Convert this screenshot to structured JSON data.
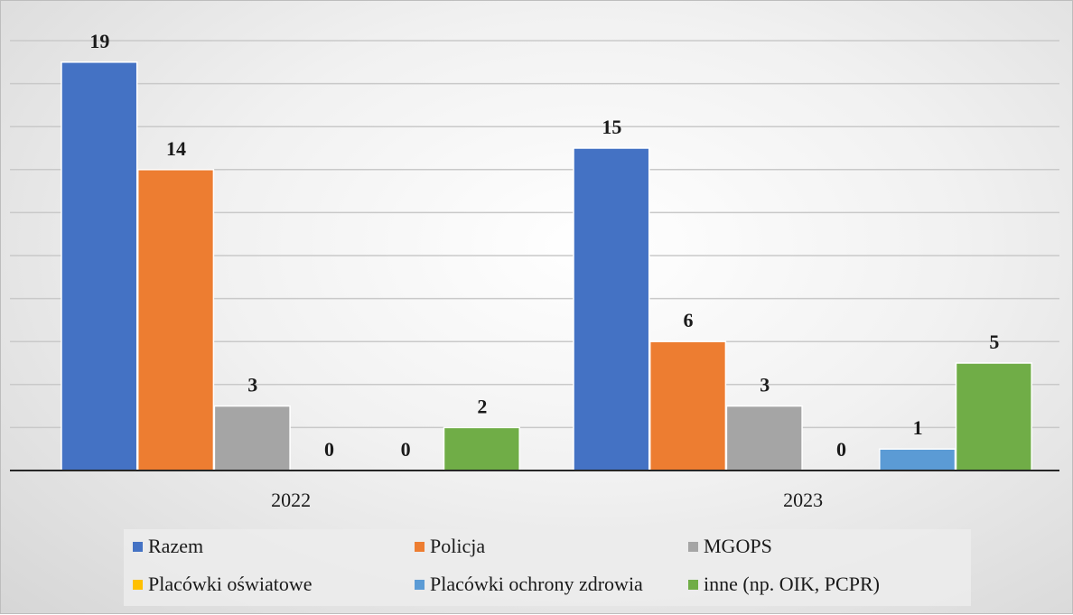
{
  "chart_data": {
    "type": "bar",
    "categories": [
      "2022",
      "2023"
    ],
    "series": [
      {
        "name": "Razem",
        "values": [
          19,
          15
        ],
        "color": "#4472C4"
      },
      {
        "name": "Policja",
        "values": [
          14,
          6
        ],
        "color": "#ED7D31"
      },
      {
        "name": "MGOPS",
        "values": [
          3,
          3
        ],
        "color": "#A5A5A5"
      },
      {
        "name": "Placówki oświatowe",
        "values": [
          0,
          0
        ],
        "color": "#FFC000"
      },
      {
        "name": "Placówki ochrony zdrowia",
        "values": [
          0,
          1
        ],
        "color": "#5B9BD5"
      },
      {
        "name": "inne (np. OIK, PCPR)",
        "values": [
          2,
          5
        ],
        "color": "#70AD47"
      }
    ],
    "ylim": [
      0,
      20
    ],
    "grid": true,
    "legend_position": "bottom",
    "data_labels": true
  }
}
